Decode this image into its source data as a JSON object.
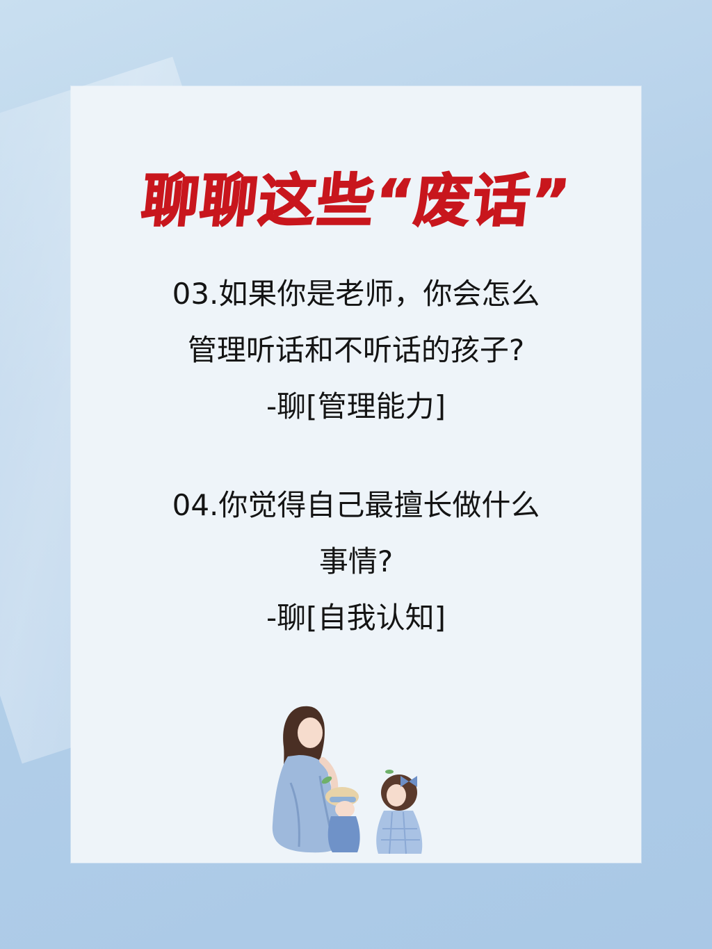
{
  "title": "聊聊这些“废话”",
  "questions": [
    {
      "lines": [
        "03.如果你是老师，你会怎么",
        "管理听话和不听话的孩子?"
      ],
      "tag": "-聊[管理能力]"
    },
    {
      "lines": [
        "04.你觉得自己最擅长做什么",
        "事情?"
      ],
      "tag": "-聊[自我认知]"
    }
  ],
  "colors": {
    "title": "#c8161d",
    "text": "#141414",
    "card": "#eef4f9",
    "background": "#b6d1ea"
  }
}
